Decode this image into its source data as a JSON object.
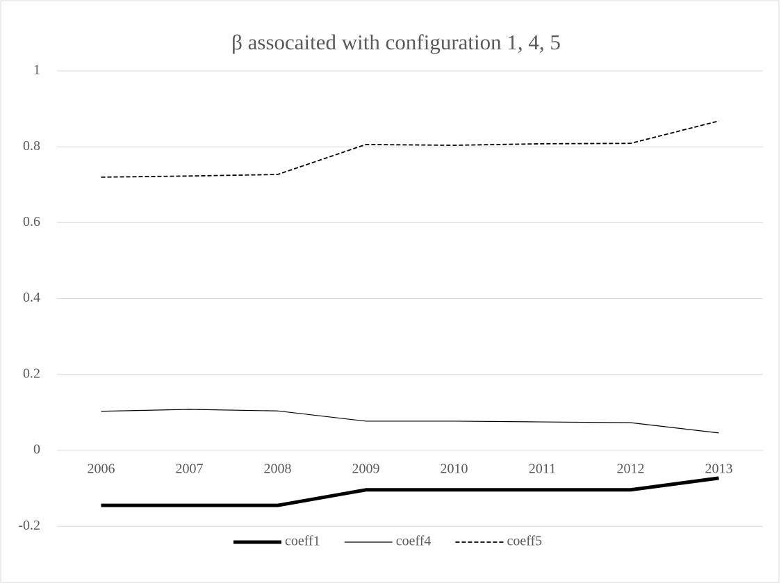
{
  "chart_data": {
    "type": "line",
    "title": "β assocaited with configuration 1, 4, 5",
    "categories": [
      "2006",
      "2007",
      "2008",
      "2009",
      "2010",
      "2011",
      "2012",
      "2013"
    ],
    "series": [
      {
        "name": "coeff1",
        "color": "#000000",
        "line_width": 5,
        "dash": false,
        "values": [
          -0.145,
          -0.145,
          -0.145,
          -0.104,
          -0.104,
          -0.104,
          -0.104,
          -0.073
        ]
      },
      {
        "name": "coeff4",
        "color": "#000000",
        "line_width": 1.2,
        "dash": false,
        "values": [
          0.103,
          0.108,
          0.104,
          0.077,
          0.077,
          0.075,
          0.073,
          0.046
        ]
      },
      {
        "name": "coeff5",
        "color": "#000000",
        "line_width": 1.8,
        "dash": true,
        "values": [
          0.72,
          0.723,
          0.727,
          0.806,
          0.804,
          0.808,
          0.809,
          0.868
        ]
      }
    ],
    "ylim": [
      -0.3,
      1
    ],
    "yticks": [
      -0.2,
      0,
      0.2,
      0.4,
      0.6,
      0.8,
      1
    ],
    "grid": true,
    "legend": "bottom"
  }
}
